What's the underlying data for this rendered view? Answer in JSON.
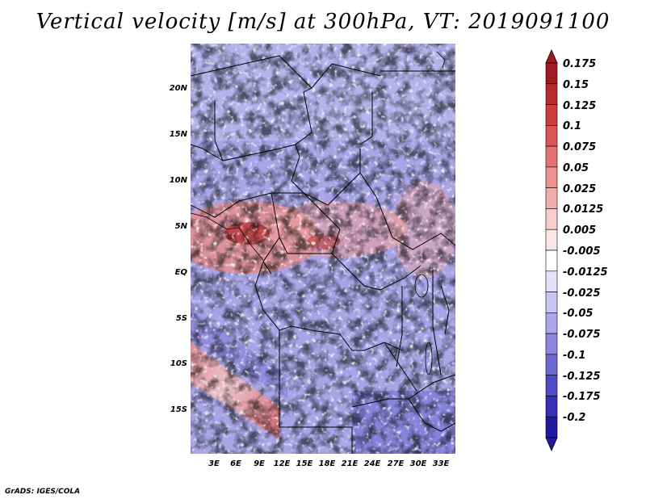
{
  "title": "Vertical velocity [m/s] at 300hPa, VT: 2019091100",
  "credit": "GrADS: IGES/COLA",
  "y_axis_labels": [
    "20N",
    "15N",
    "10N",
    "5N",
    "EQ",
    "5S",
    "10S",
    "15S"
  ],
  "x_axis_labels": [
    "3E",
    "6E",
    "9E",
    "12E",
    "15E",
    "18E",
    "21E",
    "24E",
    "27E",
    "30E",
    "33E"
  ],
  "colorbar": {
    "labels": [
      "0.175",
      "0.15",
      "0.125",
      "0.1",
      "0.075",
      "0.05",
      "0.025",
      "0.0125",
      "0.005",
      "-0.005",
      "-0.0125",
      "-0.025",
      "-0.05",
      "-0.075",
      "-0.1",
      "-0.125",
      "-0.175",
      "-0.2"
    ],
    "colors": [
      "#9e1c20",
      "#b82a2e",
      "#cf3c3c",
      "#dd5555",
      "#e57373",
      "#ec9090",
      "#f2adad",
      "#f7cccc",
      "#fbe6e6",
      "#ffffff",
      "#e4e2f8",
      "#c9c5f1",
      "#aaa6e8",
      "#8c87de",
      "#6e68d4",
      "#5049c8",
      "#372fb5",
      "#2318a0"
    ],
    "top_color": "#9e1c20",
    "bottom_color": "#2318a0"
  }
}
